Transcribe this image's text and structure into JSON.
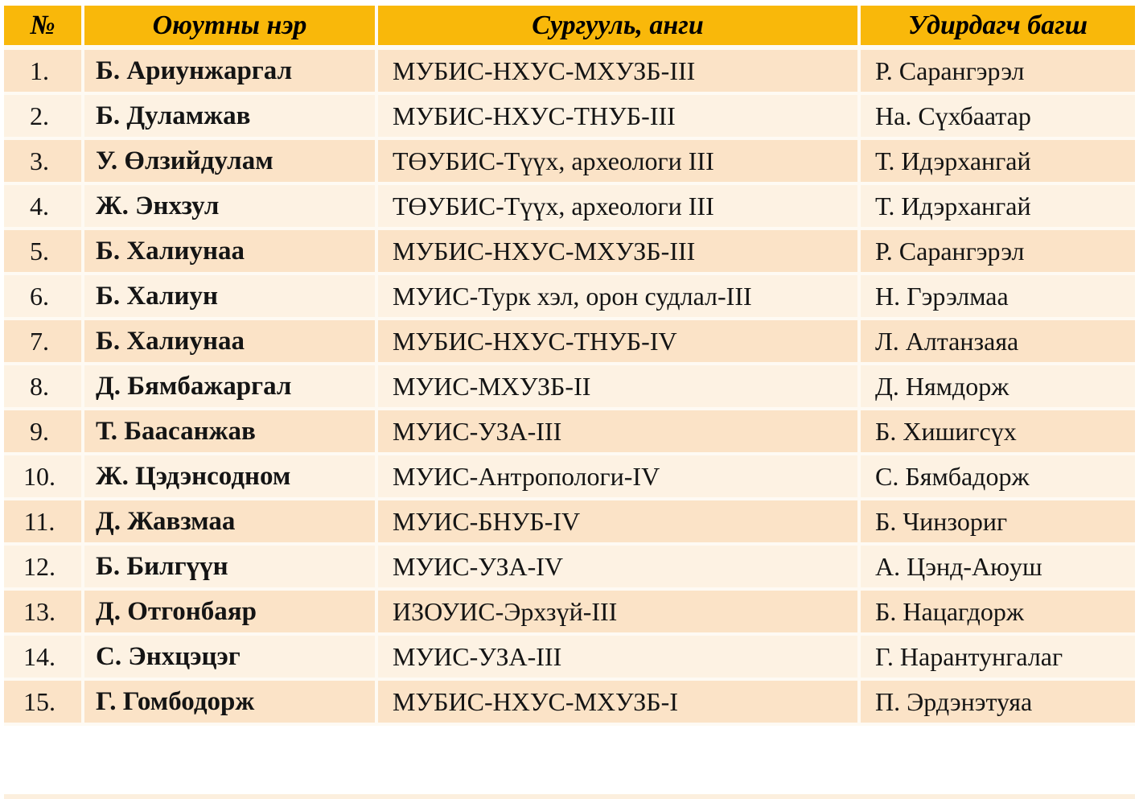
{
  "table": {
    "headers": {
      "num": "№",
      "name": "Оюутны нэр",
      "school": "Сургууль, анги",
      "teacher": "Удирдагч багш"
    },
    "rows": [
      {
        "num": "1.",
        "name": "Б. Ариунжаргал",
        "school": "МУБИС-НХУС-МХУЗБ-III",
        "teacher": "Р. Сарангэрэл"
      },
      {
        "num": "2.",
        "name": "Б. Дуламжав",
        "school": "МУБИС-НХУС-ТНУБ-III",
        "teacher": "На. Сүхбаатар"
      },
      {
        "num": "3.",
        "name": "У. Өлзийдулам",
        "school": "ТӨУБИС-Түүх, археологи III",
        "teacher": "Т. Идэрхангай"
      },
      {
        "num": "4.",
        "name": "Ж. Энхзул",
        "school": "ТӨУБИС-Түүх, археологи III",
        "teacher": "Т. Идэрхангай"
      },
      {
        "num": "5.",
        "name": "Б. Халиунаа",
        "school": "МУБИС-НХУС-МХУЗБ-III",
        "teacher": "Р. Сарангэрэл"
      },
      {
        "num": "6.",
        "name": "Б. Халиун",
        "school": "МУИС-Турк хэл, орон судлал-III",
        "teacher": "Н. Гэрэлмаа"
      },
      {
        "num": "7.",
        "name": "Б. Халиунаа",
        "school": "МУБИС-НХУС-ТНУБ-IV",
        "teacher": "Л. Алтанзаяа"
      },
      {
        "num": "8.",
        "name": "Д. Бямбажаргал",
        "school": "МУИС-МХУЗБ-II",
        "teacher": "Д. Нямдорж"
      },
      {
        "num": "9.",
        "name": "Т. Баасанжав",
        "school": "МУИС-УЗА-III",
        "teacher": "Б. Хишигсүх"
      },
      {
        "num": "10.",
        "name": "Ж. Цэдэнсодном",
        "school": "МУИС-Антропологи-IV",
        "teacher": "С. Бямбадорж"
      },
      {
        "num": "11.",
        "name": "Д. Жавзмаа",
        "school": "МУИС-БНУБ-IV",
        "teacher": "Б. Чинзориг"
      },
      {
        "num": "12.",
        "name": "Б. Билгүүн",
        "school": "МУИС-УЗА-IV",
        "teacher": "А. Цэнд-Аюуш"
      },
      {
        "num": "13.",
        "name": "Д. Отгонбаяр",
        "school": "ИЗОУИС-Эрхзүй-III",
        "teacher": "Б. Нацагдорж"
      },
      {
        "num": "14.",
        "name": "С. Энхцэцэг",
        "school": "МУИС-УЗА-III",
        "teacher": "Г. Нарантунгалаг"
      },
      {
        "num": "15.",
        "name": "Г. Гомбодорж",
        "school": "МУБИС-НХУС-МХУЗБ-I",
        "teacher": "П. Эрдэнэтуяа"
      }
    ],
    "colors": {
      "header_bg": "#F9B80A",
      "row_odd_bg": "#FBE3C7",
      "row_even_bg": "#FDF2E3",
      "divider": "#FEFAF3",
      "bottom_strip": "#FCEFDE",
      "text": "#000000"
    }
  }
}
